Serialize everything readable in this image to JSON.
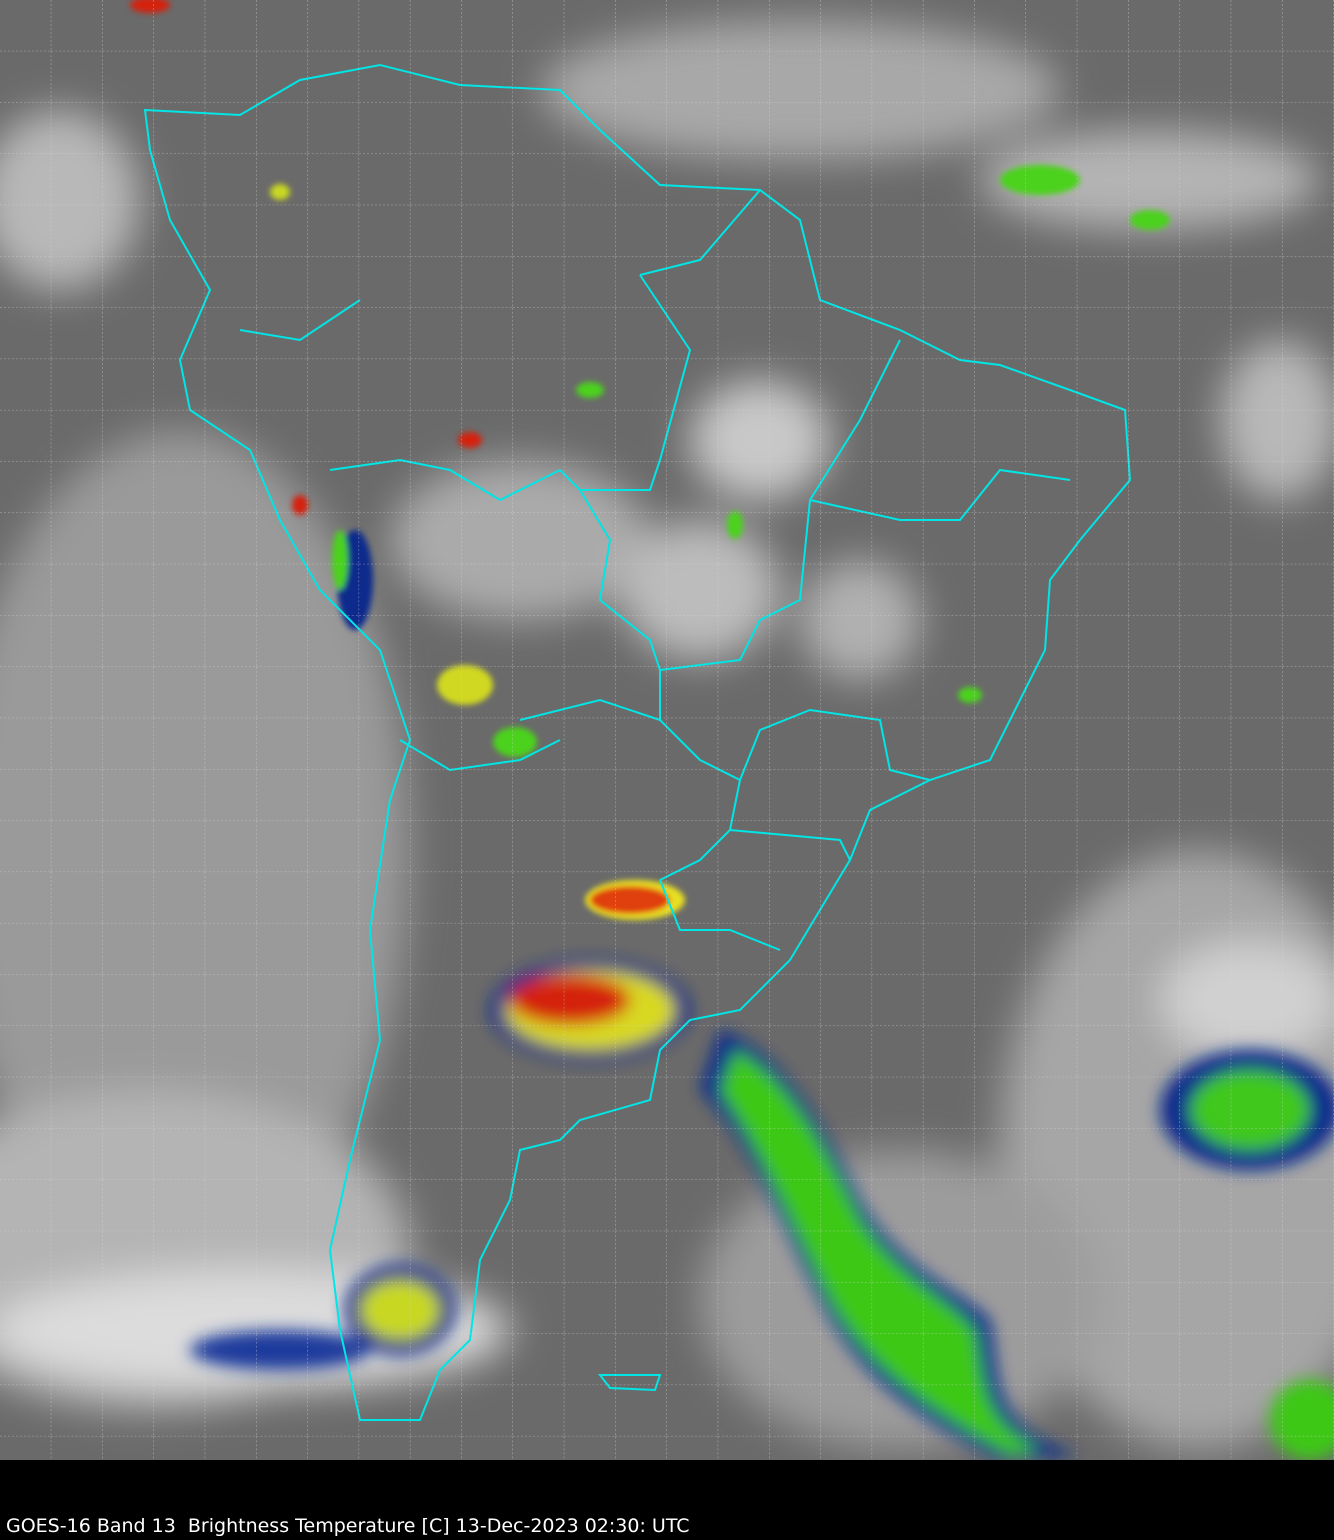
{
  "caption": "GOES-16 Band 13  Brightness Temperature [C] 13-Dec-2023 02:30: UTC",
  "map": {
    "region": "South America",
    "layer": "infrared brightness temperature",
    "colors": {
      "background_gray": "#6e6e6e",
      "boundaries": "#00e5e5",
      "grid": "#d0d0d0",
      "cold_blue": "#0a2a8c",
      "green": "#4cd21c",
      "yellow": "#e8e020",
      "red": "#d42010",
      "dark_red": "#5a0000"
    },
    "grid": "dashed lat/lon graticule"
  }
}
